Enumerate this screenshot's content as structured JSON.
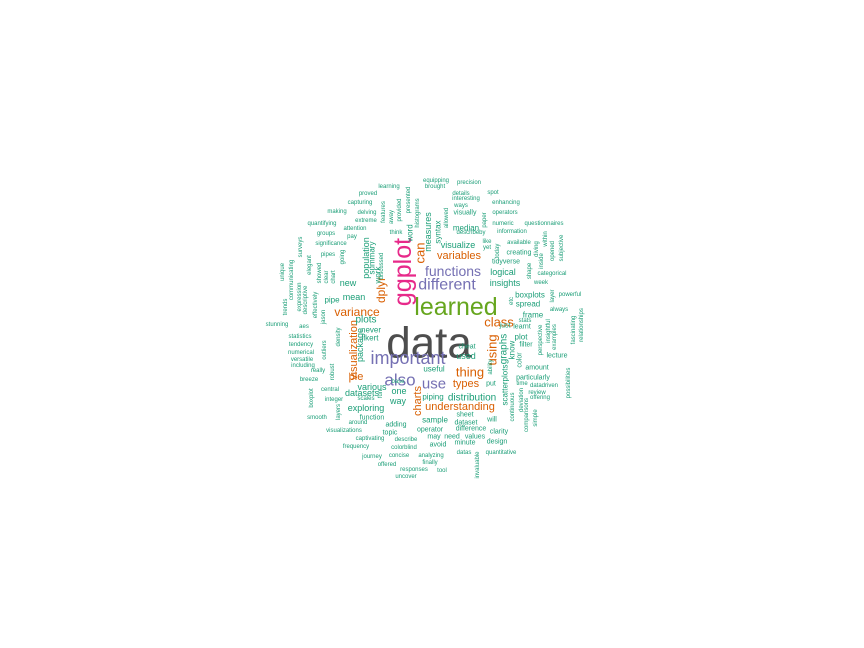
{
  "colors": {
    "background": "#ffffff",
    "c0": "#1b9e77",
    "c1": "#d95f02",
    "c2": "#7570b3",
    "c3": "#e7298a",
    "c4": "#66a61e",
    "c5": "#4d4d4d"
  },
  "words": [
    {
      "text": "data",
      "color": "c5"
    },
    {
      "text": "learned",
      "color": "c4"
    },
    {
      "text": "ggplot",
      "color": "c3"
    },
    {
      "text": "important",
      "color": "c2"
    },
    {
      "text": "different",
      "color": "c2"
    },
    {
      "text": "functions",
      "color": "c2"
    },
    {
      "text": "also",
      "color": "c2"
    },
    {
      "text": "use",
      "color": "c2"
    },
    {
      "text": "class",
      "color": "c1"
    },
    {
      "text": "thing",
      "color": "c1"
    },
    {
      "text": "using",
      "color": "c1"
    },
    {
      "text": "can",
      "color": "c1"
    },
    {
      "text": "dplyr",
      "color": "c1"
    },
    {
      "text": "variance",
      "color": "c1"
    },
    {
      "text": "visualization",
      "color": "c1"
    },
    {
      "text": "pie",
      "color": "c1"
    },
    {
      "text": "charts",
      "color": "c1"
    },
    {
      "text": "types",
      "color": "c1"
    },
    {
      "text": "understanding",
      "color": "c1"
    },
    {
      "text": "variables",
      "color": "c1"
    },
    {
      "text": "plots",
      "color": "c0"
    },
    {
      "text": "distribution",
      "color": "c0"
    },
    {
      "text": "graphs",
      "color": "c0"
    },
    {
      "text": "measures",
      "color": "c0"
    },
    {
      "text": "visualize",
      "color": "c0"
    },
    {
      "text": "insights",
      "color": "c0"
    },
    {
      "text": "logical",
      "color": "c0"
    },
    {
      "text": "mean",
      "color": "c0"
    },
    {
      "text": "pipe",
      "color": "c0"
    },
    {
      "text": "new",
      "color": "c0"
    },
    {
      "text": "package",
      "color": "c0"
    },
    {
      "text": "population",
      "color": "c0"
    },
    {
      "text": "various",
      "color": "c0"
    },
    {
      "text": "exploring",
      "color": "c0"
    },
    {
      "text": "datasets",
      "color": "c0"
    },
    {
      "text": "way",
      "color": "c0"
    },
    {
      "text": "one",
      "color": "c0"
    },
    {
      "text": "used",
      "color": "c0"
    },
    {
      "text": "useful",
      "color": "c0"
    },
    {
      "text": "piping",
      "color": "c0"
    },
    {
      "text": "boxplots",
      "color": "c0"
    },
    {
      "text": "spread",
      "color": "c0"
    },
    {
      "text": "frame",
      "color": "c0"
    },
    {
      "text": "plot",
      "color": "c0"
    },
    {
      "text": "know",
      "color": "c0"
    },
    {
      "text": "scatterplots",
      "color": "c0"
    },
    {
      "text": "sample",
      "color": "c0"
    },
    {
      "text": "operator",
      "color": "c0"
    },
    {
      "text": "topic",
      "color": "c0"
    },
    {
      "text": "adding",
      "color": "c0"
    },
    {
      "text": "function",
      "color": "c0"
    },
    {
      "text": "never",
      "color": "c0"
    },
    {
      "text": "likert",
      "color": "c0"
    },
    {
      "text": "work",
      "color": "c0"
    },
    {
      "text": "summary",
      "color": "c0"
    },
    {
      "text": "word",
      "color": "c0"
    },
    {
      "text": "syntax",
      "color": "c0"
    },
    {
      "text": "median",
      "color": "c0"
    },
    {
      "text": "tidyverse",
      "color": "c0"
    },
    {
      "text": "cheat",
      "color": "c0"
    },
    {
      "text": "sheet",
      "color": "c0"
    },
    {
      "text": "dataset",
      "color": "c0"
    },
    {
      "text": "difference",
      "color": "c0"
    },
    {
      "text": "values",
      "color": "c0"
    },
    {
      "text": "need",
      "color": "c0"
    },
    {
      "text": "may",
      "color": "c0"
    },
    {
      "text": "avoid",
      "color": "c0"
    },
    {
      "text": "minute",
      "color": "c0"
    },
    {
      "text": "design",
      "color": "c0"
    },
    {
      "text": "clarity",
      "color": "c0"
    },
    {
      "text": "will",
      "color": "c0"
    },
    {
      "text": "put",
      "color": "c0"
    },
    {
      "text": "particularly",
      "color": "c0"
    },
    {
      "text": "amount",
      "color": "c0"
    },
    {
      "text": "lecture",
      "color": "c0"
    },
    {
      "text": "filter",
      "color": "c0"
    },
    {
      "text": "learnt",
      "color": "c0"
    },
    {
      "text": "just",
      "color": "c0"
    },
    {
      "text": "stats",
      "color": "c0"
    },
    {
      "text": "color",
      "color": "c0"
    },
    {
      "text": "creating",
      "color": "c0"
    },
    {
      "text": "available",
      "color": "c0"
    },
    {
      "text": "information",
      "color": "c0"
    },
    {
      "text": "describe",
      "color": "c0"
    },
    {
      "text": "describeby",
      "color": "c0"
    },
    {
      "text": "visually",
      "color": "c0"
    },
    {
      "text": "operators",
      "color": "c0"
    },
    {
      "text": "numeric",
      "color": "c0"
    },
    {
      "text": "questionnaires",
      "color": "c0"
    },
    {
      "text": "enhancing",
      "color": "c0"
    },
    {
      "text": "spot",
      "color": "c0"
    },
    {
      "text": "precision",
      "color": "c0"
    },
    {
      "text": "brought",
      "color": "c0"
    },
    {
      "text": "equipping",
      "color": "c0"
    },
    {
      "text": "details",
      "color": "c0"
    },
    {
      "text": "interesting",
      "color": "c0"
    },
    {
      "text": "ways",
      "color": "c0"
    },
    {
      "text": "learning",
      "color": "c0"
    },
    {
      "text": "proved",
      "color": "c0"
    },
    {
      "text": "capturing",
      "color": "c0"
    },
    {
      "text": "making",
      "color": "c0"
    },
    {
      "text": "delving",
      "color": "c0"
    },
    {
      "text": "extreme",
      "color": "c0"
    },
    {
      "text": "attention",
      "color": "c0"
    },
    {
      "text": "pay",
      "color": "c0"
    },
    {
      "text": "quantifying",
      "color": "c0"
    },
    {
      "text": "groups",
      "color": "c0"
    },
    {
      "text": "significance",
      "color": "c0"
    },
    {
      "text": "pipes",
      "color": "c0"
    },
    {
      "text": "going",
      "color": "c0"
    },
    {
      "text": "showed",
      "color": "c0"
    },
    {
      "text": "clear",
      "color": "c0"
    },
    {
      "text": "chart",
      "color": "c0"
    },
    {
      "text": "surveys",
      "color": "c0"
    },
    {
      "text": "elegant",
      "color": "c0"
    },
    {
      "text": "communicating",
      "color": "c0"
    },
    {
      "text": "unique",
      "color": "c0"
    },
    {
      "text": "trends",
      "color": "c0"
    },
    {
      "text": "expression",
      "color": "c0"
    },
    {
      "text": "descriptive",
      "color": "c0"
    },
    {
      "text": "effectively",
      "color": "c0"
    },
    {
      "text": "aes",
      "color": "c0"
    },
    {
      "text": "stunning",
      "color": "c0"
    },
    {
      "text": "statistics",
      "color": "c0"
    },
    {
      "text": "tendency",
      "color": "c0"
    },
    {
      "text": "numerical",
      "color": "c0"
    },
    {
      "text": "versatile",
      "color": "c0"
    },
    {
      "text": "including",
      "color": "c0"
    },
    {
      "text": "really",
      "color": "c0"
    },
    {
      "text": "breeze",
      "color": "c0"
    },
    {
      "text": "central",
      "color": "c0"
    },
    {
      "text": "integer",
      "color": "c0"
    },
    {
      "text": "boxplot",
      "color": "c0"
    },
    {
      "text": "smooth",
      "color": "c0"
    },
    {
      "text": "layers",
      "color": "c0"
    },
    {
      "text": "around",
      "color": "c0"
    },
    {
      "text": "visualizations",
      "color": "c0"
    },
    {
      "text": "captivating",
      "color": "c0"
    },
    {
      "text": "frequency",
      "color": "c0"
    },
    {
      "text": "journey",
      "color": "c0"
    },
    {
      "text": "offered",
      "color": "c0"
    },
    {
      "text": "concise",
      "color": "c0"
    },
    {
      "text": "colorblind",
      "color": "c0"
    },
    {
      "text": "responses",
      "color": "c0"
    },
    {
      "text": "uncover",
      "color": "c0"
    },
    {
      "text": "analyzing",
      "color": "c0"
    },
    {
      "text": "finally",
      "color": "c0"
    },
    {
      "text": "tool",
      "color": "c0"
    },
    {
      "text": "datas",
      "color": "c0"
    },
    {
      "text": "quantitative",
      "color": "c0"
    },
    {
      "text": "invaluable",
      "color": "c0"
    },
    {
      "text": "scales",
      "color": "c0"
    },
    {
      "text": "base",
      "color": "c0"
    },
    {
      "text": "fun",
      "color": "c0"
    },
    {
      "text": "robust",
      "color": "c0"
    },
    {
      "text": "outliers",
      "color": "c0"
    },
    {
      "text": "density",
      "color": "c0"
    },
    {
      "text": "jason",
      "color": "c0"
    },
    {
      "text": "insightful",
      "color": "c0"
    },
    {
      "text": "perspective",
      "color": "c0"
    },
    {
      "text": "examples",
      "color": "c0"
    },
    {
      "text": "deviation",
      "color": "c0"
    },
    {
      "text": "continuous",
      "color": "c0"
    },
    {
      "text": "comparisons",
      "color": "c0"
    },
    {
      "text": "simple",
      "color": "c0"
    },
    {
      "text": "offering",
      "color": "c0"
    },
    {
      "text": "review",
      "color": "c0"
    },
    {
      "text": "datadriven",
      "color": "c0"
    },
    {
      "text": "time",
      "color": "c0"
    },
    {
      "text": "possibilities",
      "color": "c0"
    },
    {
      "text": "relationships",
      "color": "c0"
    },
    {
      "text": "fascinating",
      "color": "c0"
    },
    {
      "text": "layer",
      "color": "c0"
    },
    {
      "text": "powerful",
      "color": "c0"
    },
    {
      "text": "always",
      "color": "c0"
    },
    {
      "text": "week",
      "color": "c0"
    },
    {
      "text": "categorical",
      "color": "c0"
    },
    {
      "text": "subjective",
      "color": "c0"
    },
    {
      "text": "opened",
      "color": "c0"
    },
    {
      "text": "within",
      "color": "c0"
    },
    {
      "text": "diving",
      "color": "c0"
    },
    {
      "text": "inside",
      "color": "c0"
    },
    {
      "text": "shape",
      "color": "c0"
    },
    {
      "text": "today",
      "color": "c0"
    },
    {
      "text": "like",
      "color": "c0"
    },
    {
      "text": "yet",
      "color": "c0"
    },
    {
      "text": "paper",
      "color": "c0"
    },
    {
      "text": "etc",
      "color": "c0"
    },
    {
      "text": "allowed",
      "color": "c0"
    },
    {
      "text": "histograms",
      "color": "c0"
    },
    {
      "text": "presented",
      "color": "c0"
    },
    {
      "text": "provided",
      "color": "c0"
    },
    {
      "text": "features",
      "color": "c0"
    },
    {
      "text": "away",
      "color": "c0"
    },
    {
      "text": "think",
      "color": "c0"
    },
    {
      "text": "discussed",
      "color": "c0"
    },
    {
      "text": "ability",
      "color": "c0"
    }
  ]
}
